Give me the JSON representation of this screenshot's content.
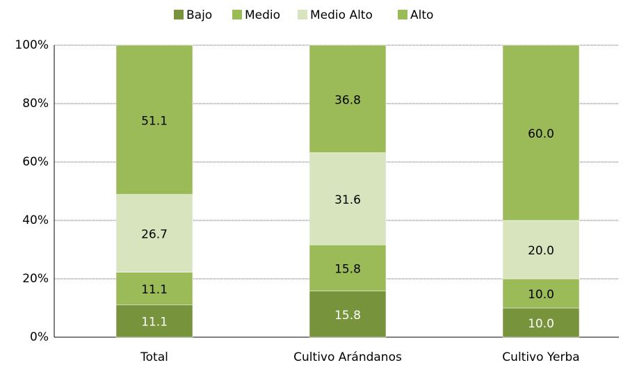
{
  "chart_data": {
    "type": "stacked_bar",
    "categories": [
      "Total",
      "Cultivo Arándanos",
      "Cultivo Yerba"
    ],
    "series": [
      {
        "name": "Bajo",
        "color": "#77933c",
        "values": [
          11.1,
          15.8,
          10.0
        ],
        "value_labels": [
          "11.1",
          "15.8",
          "10.0"
        ]
      },
      {
        "name": "Medio",
        "color": "#9bbb59",
        "values": [
          11.1,
          15.8,
          10.0
        ],
        "value_labels": [
          "11.1",
          "15.8",
          "10.0"
        ]
      },
      {
        "name": "Medio Alto",
        "color": "#d7e4bd",
        "values": [
          26.7,
          31.6,
          20.0
        ],
        "value_labels": [
          "26.7",
          "31.6",
          "20.0"
        ]
      },
      {
        "name": "Alto",
        "color": "#9bbb59",
        "values": [
          51.1,
          36.8,
          60.0
        ],
        "value_labels": [
          "51.1",
          "36.8",
          "60.0"
        ]
      }
    ],
    "ylim": [
      0,
      100
    ],
    "yticks": [
      {
        "value": 0,
        "label": "0%"
      },
      {
        "value": 20,
        "label": "20%"
      },
      {
        "value": 40,
        "label": "40%"
      },
      {
        "value": 60,
        "label": "60%"
      },
      {
        "value": 80,
        "label": "80%"
      },
      {
        "value": 100,
        "label": "100%"
      }
    ],
    "grid": true,
    "legend": "top"
  }
}
